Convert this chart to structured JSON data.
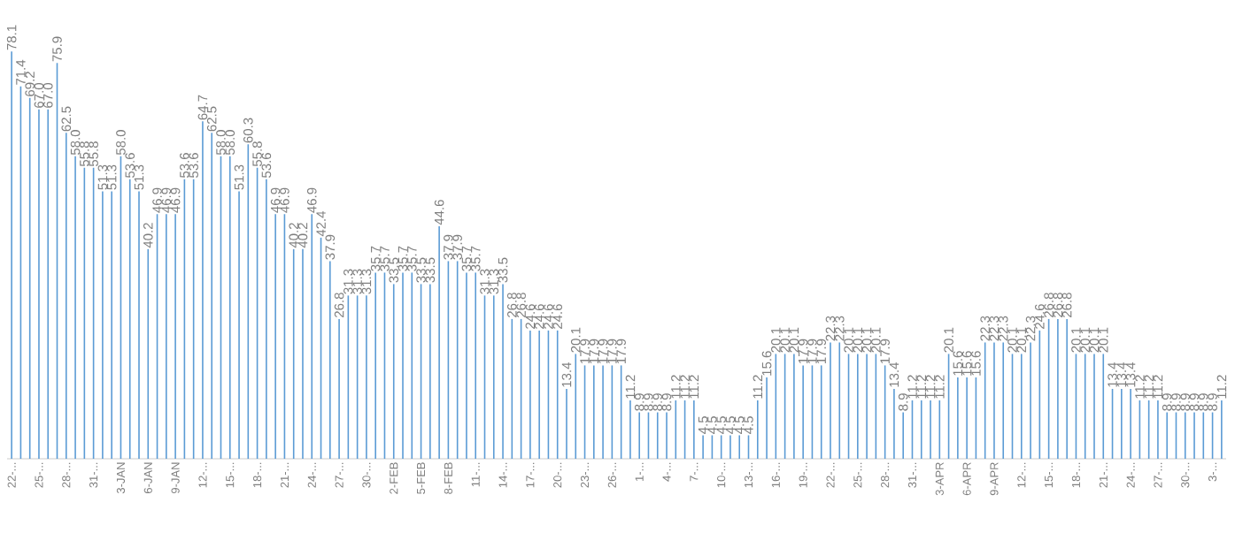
{
  "chart_data": {
    "type": "bar",
    "categories": [
      "22-...",
      null,
      null,
      "25-...",
      null,
      null,
      "28-...",
      null,
      null,
      "31-...",
      null,
      null,
      "3-JAN",
      null,
      null,
      "6-JAN",
      null,
      null,
      "9-JAN",
      null,
      null,
      "12-...",
      null,
      null,
      "15-...",
      null,
      null,
      "18-...",
      null,
      null,
      "21-...",
      null,
      null,
      "24-...",
      null,
      null,
      "27-...",
      null,
      null,
      "30-...",
      null,
      null,
      "2-FEB",
      null,
      null,
      "5-FEB",
      null,
      null,
      "8-FEB",
      null,
      null,
      "11-...",
      null,
      null,
      "14-...",
      null,
      null,
      "17-...",
      null,
      null,
      "20-...",
      null,
      null,
      "23-...",
      null,
      null,
      "26-...",
      null,
      null,
      "1-...",
      null,
      null,
      "4-...",
      null,
      null,
      "7-...",
      null,
      null,
      "10-...",
      null,
      null,
      "13-...",
      null,
      null,
      "16-...",
      null,
      null,
      "19-...",
      null,
      null,
      "22-...",
      null,
      null,
      "25-...",
      null,
      null,
      "28-...",
      null,
      null,
      "31-...",
      null,
      null,
      "3-APR",
      null,
      null,
      "6-APR",
      null,
      null,
      "9-APR",
      null,
      null,
      "12-...",
      null,
      null,
      "15-...",
      null,
      null,
      "18-...",
      null,
      null,
      "21-...",
      null,
      null,
      "24-...",
      null,
      null,
      "27-...",
      null,
      null,
      "30-...",
      null,
      null,
      "3-...",
      null
    ],
    "values": [
      78.1,
      71.4,
      69.2,
      67.0,
      67.0,
      75.9,
      62.5,
      58.0,
      55.8,
      55.8,
      51.3,
      51.3,
      58.0,
      53.6,
      51.3,
      40.2,
      46.9,
      46.9,
      46.9,
      53.6,
      53.6,
      64.7,
      62.5,
      58.0,
      58.0,
      51.3,
      60.3,
      55.8,
      53.6,
      46.9,
      46.9,
      40.2,
      40.2,
      46.9,
      42.4,
      37.9,
      26.8,
      31.3,
      31.3,
      31.3,
      35.7,
      35.7,
      33.5,
      35.7,
      35.7,
      33.5,
      33.5,
      44.6,
      37.9,
      37.9,
      35.7,
      35.7,
      31.3,
      31.3,
      33.5,
      26.8,
      26.8,
      24.6,
      24.6,
      24.6,
      24.6,
      13.4,
      20.1,
      17.9,
      17.9,
      17.9,
      17.9,
      17.9,
      11.2,
      8.9,
      8.9,
      8.9,
      8.9,
      11.2,
      11.2,
      11.2,
      4.5,
      4.5,
      4.5,
      4.5,
      4.5,
      4.5,
      11.2,
      15.6,
      20.1,
      20.1,
      20.1,
      17.9,
      17.9,
      17.9,
      22.3,
      22.3,
      20.1,
      20.1,
      20.1,
      20.1,
      17.9,
      13.4,
      8.9,
      11.2,
      11.2,
      11.2,
      11.2,
      20.1,
      15.6,
      15.6,
      15.6,
      22.3,
      22.3,
      22.3,
      20.1,
      20.1,
      22.3,
      24.6,
      26.8,
      26.8,
      26.8,
      20.1,
      20.1,
      20.1,
      20.1,
      13.4,
      13.4,
      13.4,
      11.2,
      11.2,
      11.2,
      8.9,
      8.9,
      8.9,
      8.9,
      8.9,
      8.9,
      11.2
    ],
    "color": "#5b9bd5",
    "value_labels": [
      "78.1",
      "71.4",
      "69.2",
      "67.0",
      "67.0",
      "75.9",
      "62.5",
      "58.0",
      "55.8",
      "55.8",
      "51.3",
      "51.3",
      "58.0",
      "53.6",
      "51.3",
      "40.2",
      "46.9",
      "46.9",
      "46.9",
      "53.6",
      "53.6",
      "64.7",
      "62.5",
      "58.0",
      "58.0",
      "51.3",
      "60.3",
      "55.8",
      "53.6",
      "46.9",
      "46.9",
      "40.2",
      "40.2",
      "46.9",
      "42.4",
      "37.9",
      "26.8",
      "31.3",
      "31.3",
      "31.3",
      "35.7",
      "35.7",
      "33.5",
      "35.7",
      "35.7",
      "33.5",
      "33.5",
      "44.6",
      "37.9",
      "37.9",
      "35.7",
      "35.7",
      "31.3",
      "31.3",
      "33.5",
      "26.8",
      "26.8",
      "24.6",
      "24.6",
      "24.6",
      "24.6",
      "13.4",
      "20.1",
      "17.9",
      "17.9",
      "17.9",
      "17.9",
      "17.9",
      "11.2",
      "8.9",
      "8.9",
      "8.9",
      "8.9",
      "11.2",
      "11.2",
      "11.2",
      "4.5",
      "4.5",
      "4.5",
      "4.5",
      "4.5",
      "4.5",
      "11.2",
      "15.6",
      "20.1",
      "20.1",
      "20.1",
      "17.9",
      "17.9",
      "17.9",
      "22.3",
      "22.3",
      "20.1",
      "20.1",
      "20.1",
      "20.1",
      "17.9",
      "13.4",
      "8.9",
      "11.2",
      "11.2",
      "11.2",
      "11.2",
      "20.1",
      "15.6",
      "15.6",
      "15.6",
      "22.3",
      "22.3",
      "22.3",
      "20.1",
      "20.1",
      "22.3",
      "24.6",
      "26.8",
      "26.8",
      "26.8",
      "20.1",
      "20.1",
      "20.1",
      "20.1",
      "13.4",
      "13.4",
      "13.4",
      "11.2",
      "11.2",
      "11.2",
      "8.9",
      "8.9",
      "8.9",
      "8.9",
      "8.9",
      "8.9",
      "11.2"
    ]
  }
}
